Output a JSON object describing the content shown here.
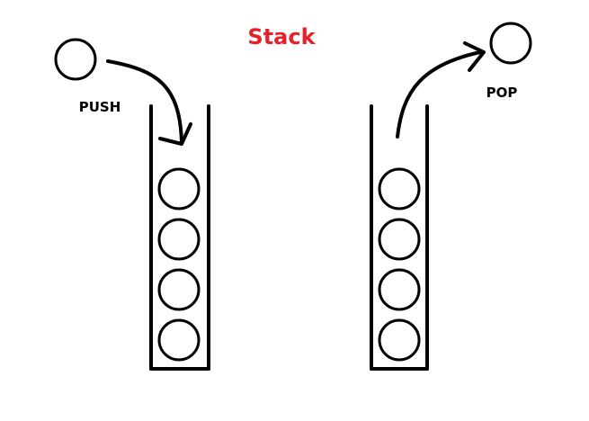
{
  "title": "Stack",
  "push_label": "PUSH",
  "pop_label": "POP",
  "balls_per_stack": 4,
  "colors": {
    "title": "#e8202a",
    "ink": "#000000",
    "background": "#ffffff"
  }
}
